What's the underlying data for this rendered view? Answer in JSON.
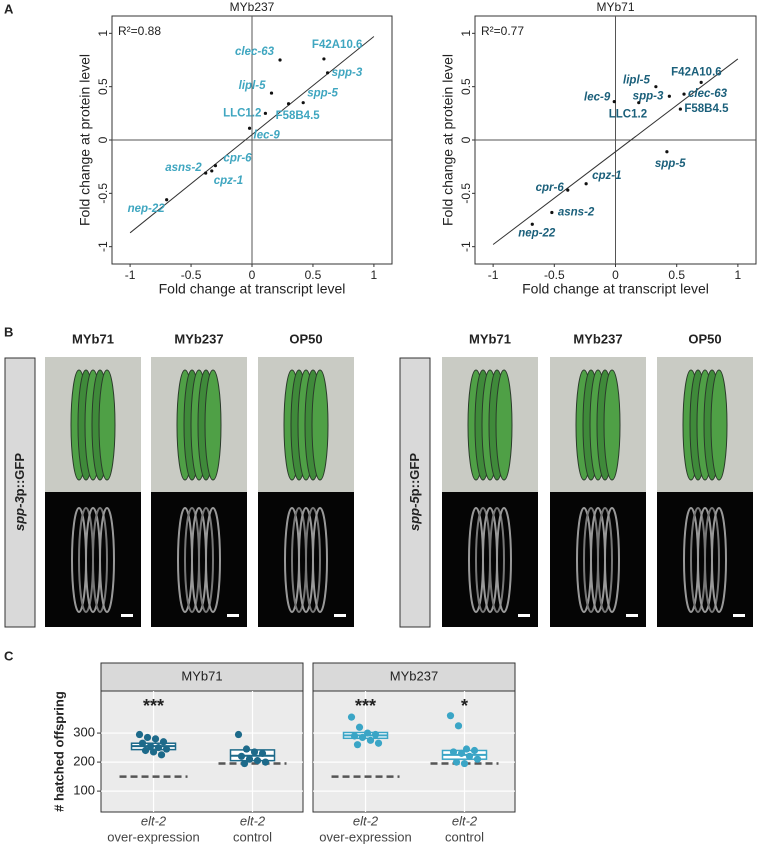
{
  "panel_labels": [
    "A",
    "B",
    "C"
  ],
  "chart_data": [
    {
      "type": "scatter",
      "title": "MYb237",
      "annotation": "R²=0.88",
      "xlabel": "Fold change at transcript level",
      "ylabel": "Fold change at protein level",
      "color": "#3fa6c0",
      "point_labels": [
        "clec-63",
        "F42A10.6",
        "spp-3",
        "lipl-5",
        "spp-5",
        "F58B4.5",
        "LLC1.2",
        "lec-9",
        "cpr-6",
        "asns-2",
        "cpz-1",
        "nep-22"
      ],
      "x": [
        0.23,
        0.59,
        0.62,
        0.16,
        0.42,
        0.3,
        0.11,
        -0.02,
        -0.3,
        -0.38,
        -0.33,
        -0.7
      ],
      "values": [
        0.75,
        0.76,
        0.63,
        0.44,
        0.35,
        0.34,
        0.25,
        0.11,
        -0.24,
        -0.31,
        -0.29,
        -0.56
      ],
      "fit_line": {
        "x": [
          -1,
          1
        ],
        "values": [
          -0.87,
          0.97
        ]
      },
      "xlim": [
        -1.05,
        1.05
      ],
      "ylim": [
        -1.05,
        1.05
      ],
      "xticks": [
        -1,
        -0.5,
        0,
        0.5,
        1
      ],
      "yticks": [
        -1,
        -0.5,
        0,
        0.5,
        1
      ]
    },
    {
      "type": "scatter",
      "title": "MYb71",
      "annotation": "R²=0.77",
      "xlabel": "Fold change at transcript level",
      "ylabel": "Fold change at protein level",
      "color": "#1a5f7a",
      "point_labels": [
        "clec-63",
        "F42A10.6",
        "spp-3",
        "lipl-5",
        "spp-5",
        "F58B4.5",
        "LLC1.2",
        "lec-9",
        "cpr-6",
        "asns-2",
        "cpz-1",
        "nep-22"
      ],
      "x": [
        0.56,
        0.7,
        0.44,
        0.33,
        0.42,
        0.53,
        0.19,
        -0.01,
        -0.39,
        -0.52,
        -0.24,
        -0.68
      ],
      "values": [
        0.43,
        0.54,
        0.41,
        0.5,
        -0.11,
        0.29,
        0.35,
        0.36,
        -0.47,
        -0.68,
        -0.41,
        -0.79
      ],
      "fit_line": {
        "x": [
          -1,
          1
        ],
        "values": [
          -0.98,
          0.76
        ]
      },
      "xlim": [
        -1.05,
        1.05
      ],
      "ylim": [
        -1.05,
        1.05
      ],
      "xticks": [
        -1,
        -0.5,
        0,
        0.5,
        1
      ],
      "yticks": [
        -1,
        -0.5,
        0,
        0.5,
        1
      ]
    },
    {
      "type": "box",
      "ylabel": "# hatched offspring",
      "category_genes": [
        "elt-2",
        "elt-2"
      ],
      "categories": [
        "over-expression",
        "control"
      ],
      "ylim": [
        28,
        445
      ],
      "yticks": [
        100,
        200,
        300
      ],
      "grid": true,
      "series": [
        {
          "name": "MYb71",
          "color": "#1d6a8a",
          "q1": [
            243,
            205
          ],
          "median": [
            255,
            222
          ],
          "q3": [
            265,
            242
          ],
          "reference": [
            150,
            195
          ],
          "significance": [
            "***",
            null
          ],
          "points": [
            [
              295,
              285,
              280,
              270,
              265,
              255,
              250,
              245,
              240,
              235,
              225
            ],
            [
              295,
              245,
              235,
              230,
              220,
              210,
              205,
              200,
              195
            ]
          ]
        },
        {
          "name": "MYb237",
          "color": "#3aa5c6",
          "q1": [
            282,
            210
          ],
          "median": [
            292,
            225
          ],
          "q3": [
            302,
            240
          ],
          "reference": [
            150,
            195
          ],
          "significance": [
            "***",
            "*"
          ],
          "points": [
            [
              355,
              320,
              300,
              295,
              290,
              285,
              275,
              265,
              260
            ],
            [
              360,
              325,
              245,
              240,
              235,
              230,
              220,
              210,
              200,
              195
            ]
          ]
        }
      ]
    }
  ],
  "microscopy": {
    "panels": [
      {
        "gene": "spp-3",
        "suffix": "p::GFP",
        "columns": [
          "MYb71",
          "MYb237",
          "OP50"
        ]
      },
      {
        "gene": "spp-5",
        "suffix": "p::GFP",
        "columns": [
          "MYb71",
          "MYb237",
          "OP50"
        ]
      }
    ]
  }
}
